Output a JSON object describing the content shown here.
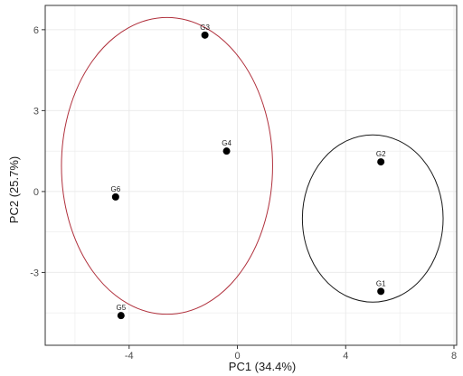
{
  "chart_data": {
    "type": "scatter",
    "xlabel": "PC1 (34.4%)",
    "ylabel": "PC2 (25.7%)",
    "xlim": [
      -7.1,
      8.1
    ],
    "ylim": [
      -5.7,
      6.9
    ],
    "x_ticks": [
      -4,
      0,
      4,
      8
    ],
    "y_ticks": [
      -3,
      0,
      3,
      6
    ],
    "x_tick_labels": [
      "-4",
      "0",
      "4",
      "8"
    ],
    "y_tick_labels": [
      "-3",
      "0",
      "3",
      "6"
    ],
    "grid": true,
    "points": [
      {
        "label": "G1",
        "x": 5.3,
        "y": -3.7
      },
      {
        "label": "G2",
        "x": 5.3,
        "y": 1.1
      },
      {
        "label": "G3",
        "x": -1.2,
        "y": 5.8
      },
      {
        "label": "G4",
        "x": -0.4,
        "y": 1.5
      },
      {
        "label": "G5",
        "x": -4.3,
        "y": -4.6
      },
      {
        "label": "G6",
        "x": -4.5,
        "y": -0.2
      }
    ],
    "ellipses": [
      {
        "group": [
          "G3",
          "G4",
          "G5",
          "G6"
        ],
        "cx": -2.6,
        "cy": 0.95,
        "rx": 3.9,
        "ry": 5.5,
        "color": "#b0303c"
      },
      {
        "group": [
          "G1",
          "G2"
        ],
        "cx": 5.0,
        "cy": -1.0,
        "rx": 2.6,
        "ry": 3.1,
        "color": "#1a1a1a"
      }
    ],
    "point_color": "#000000",
    "grid_color": "#ebebeb"
  }
}
